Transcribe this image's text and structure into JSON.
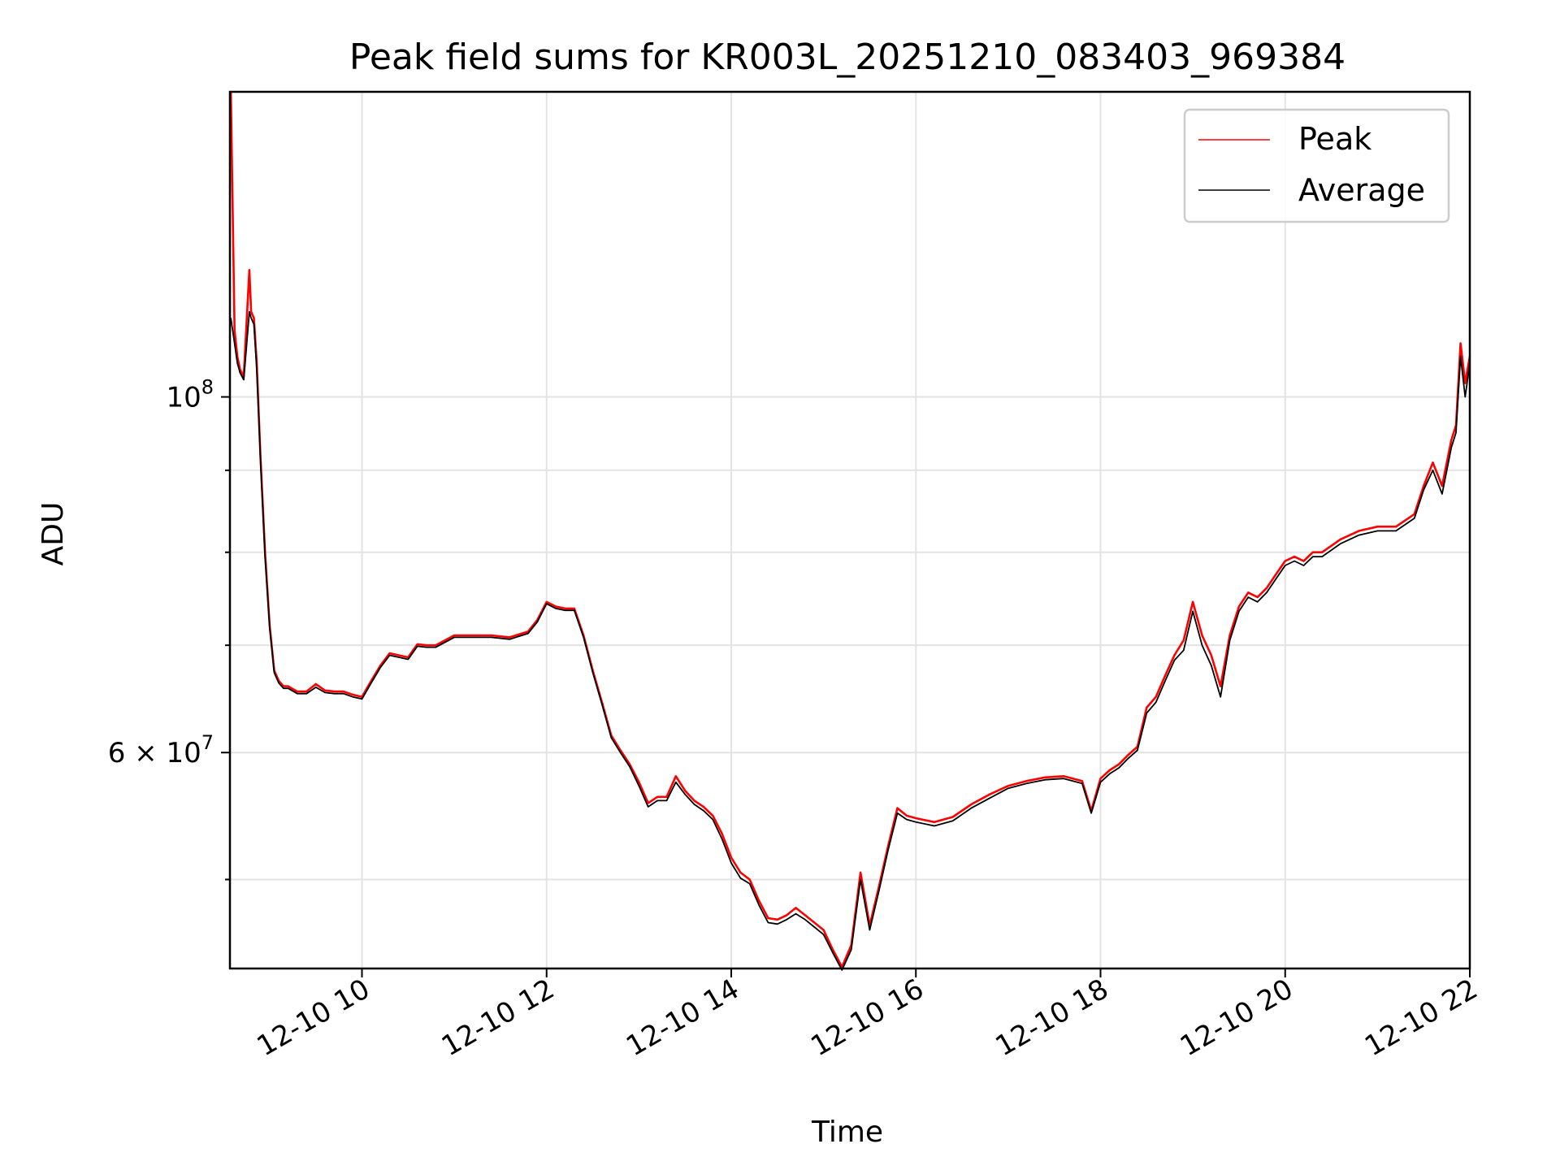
{
  "chart_data": {
    "type": "line",
    "title": "Peak field sums for KR003L_20251210_083403_969384",
    "xlabel": "Time",
    "ylabel": "ADU",
    "yscale": "log",
    "grid": true,
    "legend_position": "top-right",
    "xlim_hours": [
      8.57,
      22.0
    ],
    "ylim": [
      44000000,
      155000000
    ],
    "x_ticks": [
      {
        "value": 10,
        "label": "12-10 10"
      },
      {
        "value": 12,
        "label": "12-10 12"
      },
      {
        "value": 14,
        "label": "12-10 14"
      },
      {
        "value": 16,
        "label": "12-10 16"
      },
      {
        "value": 18,
        "label": "12-10 18"
      },
      {
        "value": 20,
        "label": "12-10 20"
      },
      {
        "value": 22,
        "label": "12-10 22"
      }
    ],
    "y_major_ticks": [
      {
        "value": 100000000,
        "base": "10",
        "exp": "8"
      },
      {
        "value": 60000000,
        "mantissa": "6",
        "base": "10",
        "exp": "7"
      }
    ],
    "y_minor_grid": [
      50000000,
      70000000,
      80000000,
      90000000
    ],
    "series": [
      {
        "name": "Peak",
        "color": "#ff0000",
        "x": [
          8.58,
          8.62,
          8.65,
          8.68,
          8.72,
          8.78,
          8.8,
          8.83,
          8.86,
          8.9,
          8.95,
          9.0,
          9.05,
          9.1,
          9.15,
          9.2,
          9.3,
          9.4,
          9.5,
          9.6,
          9.7,
          9.8,
          9.9,
          10.0,
          10.1,
          10.2,
          10.3,
          10.4,
          10.5,
          10.6,
          10.7,
          10.8,
          11.0,
          11.2,
          11.4,
          11.6,
          11.8,
          11.9,
          12.0,
          12.1,
          12.2,
          12.3,
          12.4,
          12.5,
          12.6,
          12.7,
          12.8,
          12.9,
          13.0,
          13.1,
          13.2,
          13.3,
          13.4,
          13.5,
          13.6,
          13.7,
          13.8,
          13.9,
          14.0,
          14.1,
          14.2,
          14.3,
          14.4,
          14.5,
          14.6,
          14.7,
          14.8,
          14.9,
          15.0,
          15.1,
          15.2,
          15.3,
          15.4,
          15.5,
          15.6,
          15.7,
          15.8,
          15.9,
          16.0,
          16.2,
          16.4,
          16.6,
          16.8,
          17.0,
          17.2,
          17.4,
          17.6,
          17.8,
          17.9,
          18.0,
          18.1,
          18.2,
          18.3,
          18.4,
          18.5,
          18.6,
          18.7,
          18.8,
          18.9,
          19.0,
          19.1,
          19.2,
          19.3,
          19.4,
          19.5,
          19.6,
          19.7,
          19.8,
          19.9,
          20.0,
          20.1,
          20.2,
          20.3,
          20.4,
          20.6,
          20.8,
          21.0,
          21.2,
          21.4,
          21.5,
          21.6,
          21.7,
          21.8,
          21.85,
          21.9,
          21.95,
          22.0
        ],
        "values": [
          155000000,
          110000000,
          106000000,
          104000000,
          103000000,
          120000000,
          113000000,
          112000000,
          105000000,
          92000000,
          80000000,
          72000000,
          67500000,
          66500000,
          66000000,
          66000000,
          65500000,
          65500000,
          66200000,
          65600000,
          65500000,
          65500000,
          65200000,
          65000000,
          66500000,
          68000000,
          69200000,
          69000000,
          68800000,
          70100000,
          70000000,
          70000000,
          71000000,
          71000000,
          71000000,
          70800000,
          71400000,
          72600000,
          74500000,
          74000000,
          73800000,
          73800000,
          71000000,
          67500000,
          64500000,
          61500000,
          60200000,
          59000000,
          57500000,
          55800000,
          56300000,
          56300000,
          58000000,
          56800000,
          56000000,
          55500000,
          54800000,
          53400000,
          51600000,
          50500000,
          50000000,
          48500000,
          47300000,
          47200000,
          47500000,
          48000000,
          47500000,
          47000000,
          46500000,
          45200000,
          44100000,
          45500000,
          50500000,
          46800000,
          49500000,
          52500000,
          55400000,
          54800000,
          54600000,
          54300000,
          54700000,
          55700000,
          56500000,
          57200000,
          57600000,
          57900000,
          58000000,
          57600000,
          55200000,
          57800000,
          58500000,
          59000000,
          59800000,
          60500000,
          64000000,
          65000000,
          67000000,
          69000000,
          70500000,
          74500000,
          71000000,
          69000000,
          66000000,
          71000000,
          74000000,
          75500000,
          75000000,
          76000000,
          77500000,
          79000000,
          79500000,
          79000000,
          80000000,
          80000000,
          81500000,
          82500000,
          83000000,
          83000000,
          84500000,
          88000000,
          91000000,
          88000000,
          94000000,
          96000000,
          108000000,
          102000000,
          106000000
        ],
        "label_text": "Peak"
      },
      {
        "name": "Average",
        "color": "#000000",
        "x": [
          8.58,
          8.62,
          8.65,
          8.68,
          8.72,
          8.78,
          8.8,
          8.83,
          8.86,
          8.9,
          8.95,
          9.0,
          9.05,
          9.1,
          9.15,
          9.2,
          9.3,
          9.4,
          9.5,
          9.6,
          9.7,
          9.8,
          9.9,
          10.0,
          10.1,
          10.2,
          10.3,
          10.4,
          10.5,
          10.6,
          10.7,
          10.8,
          11.0,
          11.2,
          11.4,
          11.6,
          11.8,
          11.9,
          12.0,
          12.1,
          12.2,
          12.3,
          12.4,
          12.5,
          12.6,
          12.7,
          12.8,
          12.9,
          13.0,
          13.1,
          13.2,
          13.3,
          13.4,
          13.5,
          13.6,
          13.7,
          13.8,
          13.9,
          14.0,
          14.1,
          14.2,
          14.3,
          14.4,
          14.5,
          14.6,
          14.7,
          14.8,
          14.9,
          15.0,
          15.1,
          15.2,
          15.3,
          15.4,
          15.5,
          15.6,
          15.7,
          15.8,
          15.9,
          16.0,
          16.2,
          16.4,
          16.6,
          16.8,
          17.0,
          17.2,
          17.4,
          17.6,
          17.8,
          17.9,
          18.0,
          18.1,
          18.2,
          18.3,
          18.4,
          18.5,
          18.6,
          18.7,
          18.8,
          18.9,
          19.0,
          19.1,
          19.2,
          19.3,
          19.4,
          19.5,
          19.6,
          19.7,
          19.8,
          19.9,
          20.0,
          20.1,
          20.2,
          20.3,
          20.4,
          20.6,
          20.8,
          21.0,
          21.2,
          21.4,
          21.5,
          21.6,
          21.7,
          21.8,
          21.85,
          21.9,
          21.95,
          22.0
        ],
        "values": [
          112000000,
          108000000,
          105000000,
          103500000,
          102500000,
          113000000,
          112000000,
          111000000,
          104000000,
          91500000,
          79500000,
          71800000,
          67300000,
          66300000,
          65800000,
          65800000,
          65300000,
          65300000,
          65900000,
          65400000,
          65300000,
          65300000,
          65000000,
          64800000,
          66300000,
          67800000,
          69000000,
          68800000,
          68600000,
          69900000,
          69800000,
          69800000,
          70800000,
          70800000,
          70800000,
          70600000,
          71200000,
          72400000,
          74300000,
          73800000,
          73600000,
          73600000,
          70800000,
          67300000,
          64300000,
          61300000,
          60000000,
          58800000,
          57200000,
          55500000,
          56000000,
          56000000,
          57500000,
          56500000,
          55700000,
          55200000,
          54500000,
          53000000,
          51200000,
          50100000,
          49700000,
          48200000,
          47000000,
          46900000,
          47200000,
          47600000,
          47200000,
          46700000,
          46200000,
          45000000,
          43900000,
          45200000,
          50000000,
          46500000,
          49200000,
          52200000,
          55000000,
          54500000,
          54300000,
          54000000,
          54400000,
          55400000,
          56200000,
          57000000,
          57400000,
          57700000,
          57800000,
          57400000,
          55000000,
          57500000,
          58200000,
          58700000,
          59500000,
          60200000,
          63500000,
          64500000,
          66500000,
          68500000,
          69500000,
          73500000,
          70000000,
          68000000,
          65000000,
          70500000,
          73500000,
          75000000,
          74500000,
          75500000,
          77000000,
          78500000,
          79000000,
          78500000,
          79500000,
          79500000,
          81000000,
          82000000,
          82500000,
          82500000,
          84000000,
          87500000,
          90000000,
          87000000,
          93000000,
          95000000,
          106000000,
          100000000,
          105000000
        ],
        "label_text": "Average"
      }
    ]
  }
}
